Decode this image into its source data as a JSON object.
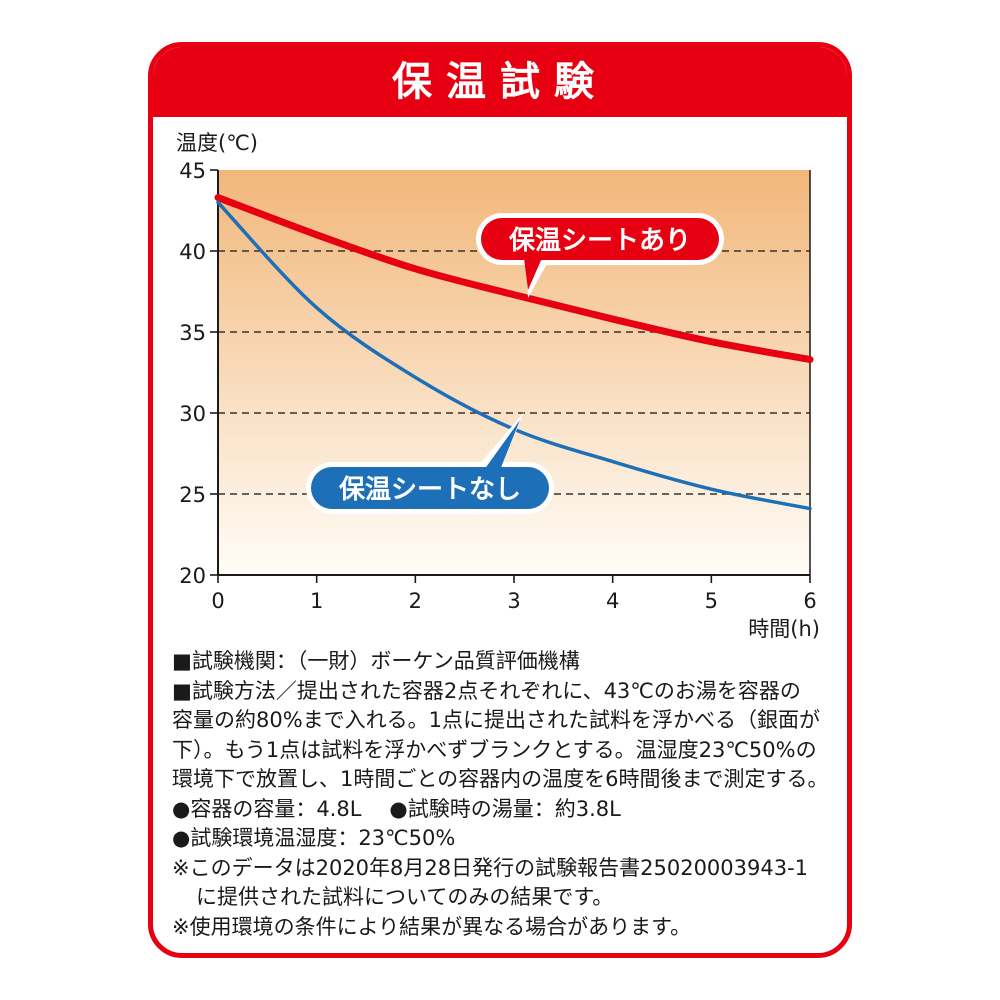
{
  "title": "保温試験",
  "chart_data": {
    "type": "line",
    "ylabel": "温度(℃)",
    "xlabel": "時間(h)",
    "xlim": [
      0,
      6
    ],
    "ylim": [
      20,
      45
    ],
    "x_ticks": [
      0,
      1,
      2,
      3,
      4,
      5,
      6
    ],
    "y_ticks": [
      20,
      25,
      30,
      35,
      40,
      45
    ],
    "grid": "dashed horizontal",
    "x": [
      0,
      1,
      2,
      3,
      4,
      5,
      6
    ],
    "series": [
      {
        "name": "保温シートあり",
        "color": "#e60012",
        "values": [
          43.3,
          41.0,
          38.9,
          37.3,
          35.8,
          34.4,
          33.3
        ]
      },
      {
        "name": "保温シートなし",
        "color": "#1d6fb8",
        "values": [
          43.0,
          36.5,
          32.2,
          29.0,
          27.0,
          25.3,
          24.1
        ]
      }
    ],
    "background_gradient": [
      "#f2b77a",
      "#fffdf8"
    ]
  },
  "notes": [
    "■試験機関：（一財）ボーケン品質評価機構",
    "■試験方法／提出された容器2点それぞれに、43℃のお湯を容器の",
    "容量の約80%まで入れる。1点に提出された試料を浮かべる（銀面が",
    "下）。もう1点は試料を浮かべずブランクとする。温湿度23℃50%の",
    "環境下で放置し、1時間ごとの容器内の温度を6時間後まで測定する。"
  ],
  "specs": {
    "capacity": "●容器の容量：4.8L",
    "water": "●試験時の湯量：約3.8L",
    "env": "●試験環境温湿度：23℃50%"
  },
  "disclaimers": [
    "※このデータは2020年8月28日発行の試験報告書25020003943-1",
    "に提供された試料についてのみの結果です。",
    "※使用環境の条件により結果が異なる場合があります。"
  ]
}
